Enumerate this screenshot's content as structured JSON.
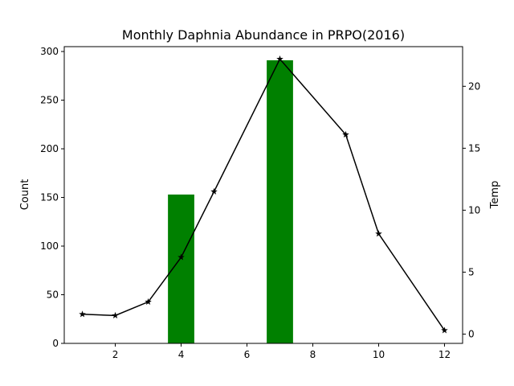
{
  "chart_data": {
    "type": "bar",
    "title": "Monthly Daphnia Abundance in PRPO(2016)",
    "xlabel": "",
    "ylabel": "Count",
    "y2label": "Temp",
    "xlim": [
      0.45,
      12.55
    ],
    "ylim": [
      0,
      305
    ],
    "y2lim": [
      -0.75,
      23.2
    ],
    "xticks": [
      2,
      4,
      6,
      8,
      10,
      12
    ],
    "yticks": [
      0,
      50,
      100,
      150,
      200,
      250,
      300
    ],
    "y2ticks": [
      0,
      5,
      10,
      15,
      20
    ],
    "grid": false,
    "colors": {
      "bar": "#008000",
      "line": "#000000"
    },
    "series": [
      {
        "kind": "bar",
        "axis": "left",
        "x": [
          4,
          7
        ],
        "values": [
          153,
          291
        ],
        "bar_width": 0.8
      },
      {
        "kind": "line",
        "axis": "right",
        "marker": "star",
        "x": [
          1,
          2,
          3,
          4,
          5,
          7,
          9,
          10,
          12
        ],
        "values": [
          1.6,
          1.5,
          2.6,
          6.2,
          11.5,
          22.2,
          16.1,
          8.1,
          0.3
        ]
      }
    ]
  }
}
